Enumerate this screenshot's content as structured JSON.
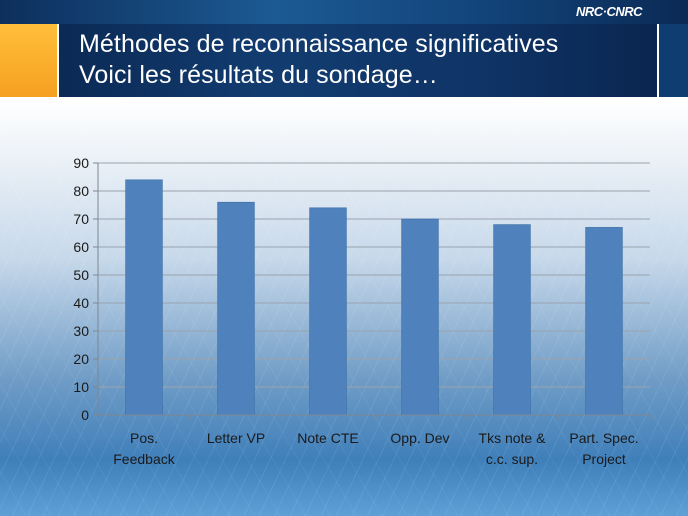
{
  "header": {
    "title_line1": "Méthodes de reconnaissance significatives",
    "title_line2": "Voici les résultats du sondage…",
    "logo": "NRC·CNRC"
  },
  "colors": {
    "bar": "#4f81bd",
    "title_bg": "#0f3466",
    "accent": "#f6a021"
  },
  "chart_data": {
    "type": "bar",
    "categories": [
      [
        "Pos.",
        "Feedback"
      ],
      [
        "Letter VP"
      ],
      [
        "Note CTE"
      ],
      [
        "Opp. Dev"
      ],
      [
        "Tks note &",
        "c.c. sup."
      ],
      [
        "Part. Spec.",
        "Project"
      ]
    ],
    "values": [
      84,
      76,
      74,
      70,
      68,
      67
    ],
    "ylim": [
      0,
      90
    ],
    "yticks": [
      0,
      10,
      20,
      30,
      40,
      50,
      60,
      70,
      80,
      90
    ],
    "grid": true,
    "legend": "none"
  }
}
